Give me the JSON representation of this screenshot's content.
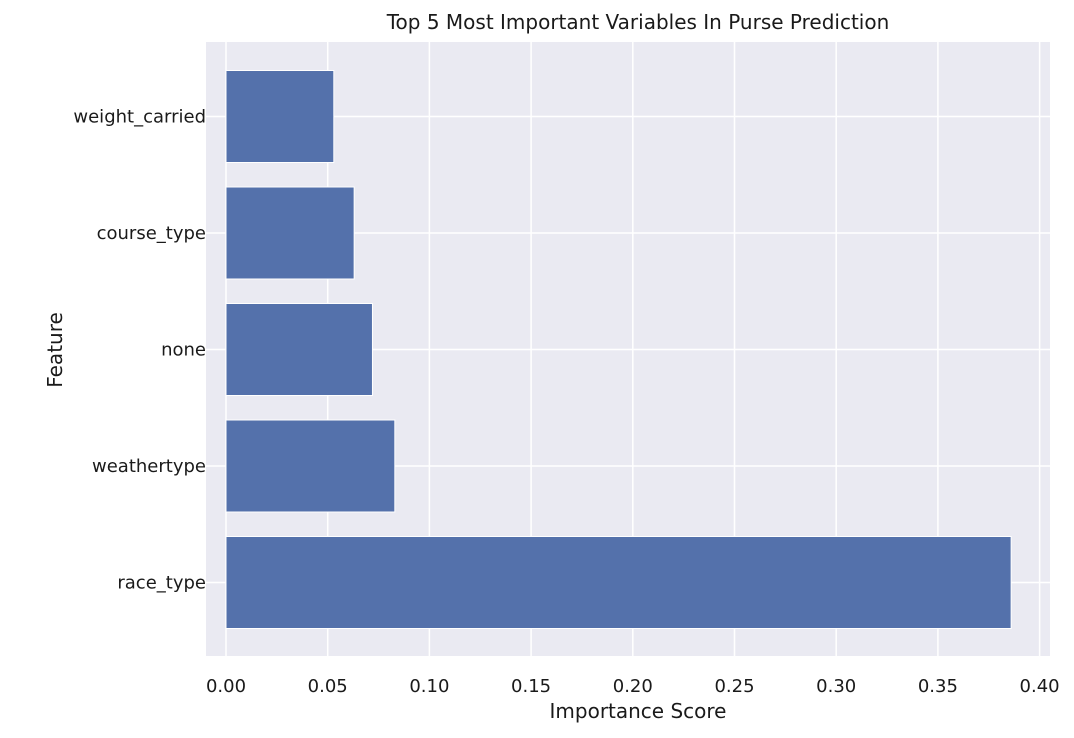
{
  "chart_data": {
    "type": "bar",
    "orientation": "horizontal",
    "title": "Top 5 Most Important Variables In Purse Prediction",
    "xlabel": "Importance Score",
    "ylabel": "Feature",
    "categories": [
      "race_type",
      "weathertype",
      "none",
      "course_type",
      "weight_carried"
    ],
    "values": [
      0.386,
      0.083,
      0.072,
      0.063,
      0.053
    ],
    "xlim": [
      0.0,
      0.41
    ],
    "xticks": [
      "0.00",
      "0.05",
      "0.10",
      "0.15",
      "0.20",
      "0.25",
      "0.30",
      "0.35",
      "0.40"
    ],
    "grid": true,
    "bar_color": "#5471ab",
    "background_color": "#eaeaf2"
  }
}
